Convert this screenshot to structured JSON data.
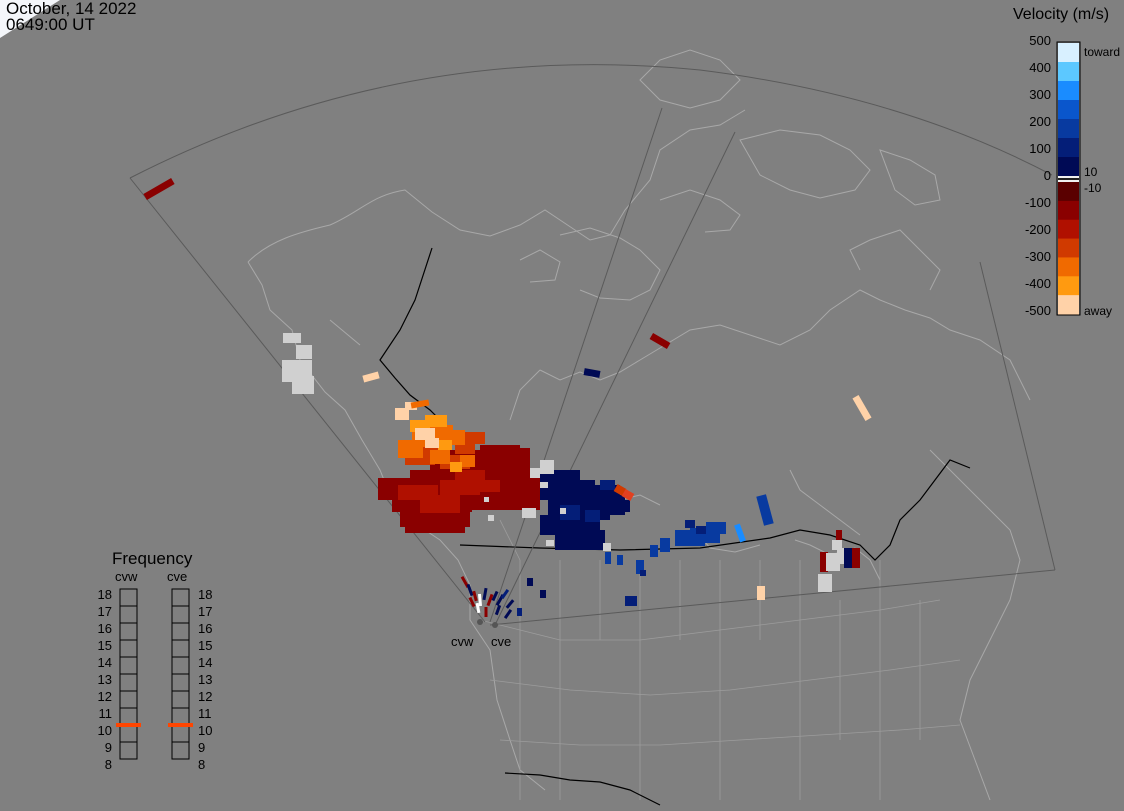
{
  "header": {
    "date": "October, 14 2022",
    "time": "0649:00 UT"
  },
  "velocity_scale": {
    "title": "Velocity (m/s)",
    "ticks": [
      "500",
      "400",
      "300",
      "200",
      "100",
      "0",
      "-100",
      "-200",
      "-300",
      "-400",
      "-500"
    ],
    "toward_label": "toward",
    "away_label": "away",
    "threshold_pos": "10",
    "threshold_neg": "-10",
    "colors_toward": [
      "#d8f0ff",
      "#5cc8ff",
      "#1a8cff",
      "#0a56cc",
      "#083aa0",
      "#041e78",
      "#000a55"
    ],
    "colors_away": [
      "#5a0000",
      "#8a0000",
      "#b01000",
      "#d03a00",
      "#f06a00",
      "#ff9a10",
      "#ffd2a8"
    ],
    "gap_colors": [
      "#f0f0f0",
      "#202020",
      "#f0f0f0"
    ]
  },
  "frequency_panel": {
    "title": "Frequency",
    "radars": [
      {
        "name": "cvw",
        "selected_mhz": 10.5
      },
      {
        "name": "cve",
        "selected_mhz": 10.5
      }
    ],
    "scale_labels": [
      "18",
      "17",
      "16",
      "15",
      "14",
      "13",
      "12",
      "11",
      "10",
      "9",
      "8"
    ],
    "marker_color": "#ff4500"
  },
  "map": {
    "radar_labels": [
      "cvw",
      "cve"
    ],
    "background_color": "#808080",
    "land_color": "#a8a8a8",
    "border_color": "#000000"
  }
}
